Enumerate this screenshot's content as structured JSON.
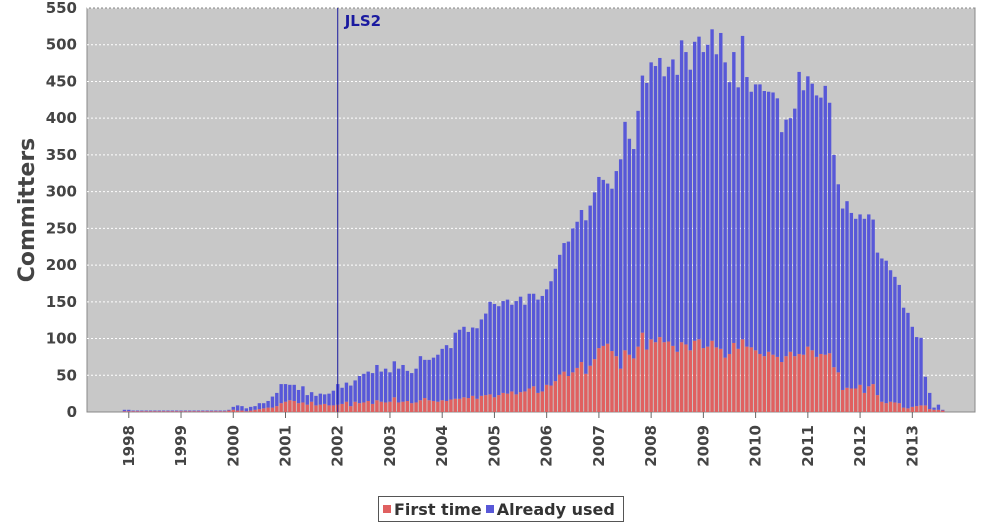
{
  "chart_data": {
    "type": "bar",
    "stacked": true,
    "ylabel": "Committers",
    "ylim": [
      0,
      550
    ],
    "yticks": [
      0,
      50,
      100,
      150,
      200,
      250,
      300,
      350,
      400,
      450,
      500,
      550
    ],
    "x_tick_labels": [
      "1998",
      "1999",
      "2000",
      "2001",
      "2002",
      "2003",
      "2004",
      "2005",
      "2006",
      "2007",
      "2008",
      "2009",
      "2010",
      "2011",
      "2012",
      "2013"
    ],
    "grid": true,
    "legend_position": "bottom-center",
    "marker": {
      "label": "JLS2",
      "x_year": 2002.0
    },
    "x_start": 1997.917,
    "x_step": 0.08333,
    "series": [
      {
        "name": "First time",
        "color": "#e06060",
        "values": [
          1,
          1,
          1,
          1,
          1,
          1,
          1,
          1,
          1,
          1,
          1,
          1,
          1,
          1,
          1,
          1,
          1,
          1,
          1,
          1,
          1,
          1,
          1,
          1,
          2,
          3,
          2,
          2,
          1,
          2,
          3,
          4,
          5,
          6,
          6,
          8,
          12,
          14,
          16,
          15,
          12,
          13,
          10,
          14,
          9,
          10,
          11,
          9,
          9,
          10,
          11,
          14,
          8,
          14,
          12,
          13,
          15,
          11,
          16,
          14,
          13,
          14,
          20,
          13,
          14,
          15,
          12,
          13,
          16,
          19,
          16,
          15,
          14,
          16,
          15,
          17,
          18,
          18,
          20,
          19,
          22,
          18,
          22,
          23,
          24,
          20,
          23,
          26,
          25,
          28,
          24,
          27,
          28,
          32,
          35,
          26,
          28,
          37,
          36,
          42,
          51,
          55,
          49,
          54,
          60,
          68,
          52,
          63,
          72,
          87,
          90,
          93,
          83,
          76,
          59,
          84,
          78,
          73,
          89,
          108,
          85,
          99,
          95,
          102,
          95,
          96,
          90,
          82,
          95,
          92,
          84,
          97,
          99,
          87,
          89,
          97,
          88,
          86,
          74,
          79,
          94,
          86,
          99,
          89,
          88,
          84,
          79,
          76,
          82,
          78,
          75,
          68,
          76,
          82,
          76,
          79,
          78,
          89,
          84,
          75,
          79,
          78,
          80,
          61,
          54,
          30,
          33,
          32,
          32,
          37,
          26,
          35,
          38,
          23,
          14,
          12,
          14,
          13,
          12,
          6,
          5,
          7,
          8,
          9,
          9,
          4,
          3,
          3,
          2
        ]
      },
      {
        "name": "Already used",
        "color": "#5858d8",
        "values": [
          2,
          2,
          1,
          1,
          1,
          1,
          1,
          1,
          1,
          1,
          1,
          1,
          1,
          1,
          1,
          1,
          1,
          1,
          1,
          1,
          1,
          1,
          1,
          1,
          1,
          4,
          7,
          6,
          4,
          5,
          5,
          8,
          7,
          9,
          15,
          18,
          26,
          24,
          21,
          22,
          18,
          22,
          13,
          13,
          13,
          15,
          13,
          16,
          20,
          28,
          22,
          26,
          28,
          29,
          37,
          39,
          40,
          42,
          48,
          41,
          46,
          40,
          49,
          46,
          50,
          41,
          41,
          46,
          60,
          52,
          55,
          59,
          64,
          70,
          76,
          70,
          90,
          94,
          96,
          90,
          93,
          96,
          104,
          111,
          126,
          127,
          121,
          125,
          128,
          118,
          127,
          130,
          118,
          129,
          126,
          127,
          130,
          130,
          142,
          153,
          163,
          175,
          183,
          196,
          199,
          207,
          209,
          218,
          227,
          233,
          226,
          218,
          221,
          252,
          285,
          311,
          294,
          285,
          321,
          350,
          363,
          377,
          376,
          380,
          362,
          374,
          390,
          377,
          411,
          398,
          382,
          407,
          412,
          403,
          411,
          424,
          399,
          430,
          402,
          370,
          396,
          356,
          413,
          367,
          348,
          362,
          367,
          361,
          354,
          357,
          352,
          313,
          322,
          318,
          337,
          384,
          360,
          368,
          363,
          356,
          349,
          366,
          341,
          289,
          256,
          247,
          254,
          239,
          231,
          232,
          237,
          234,
          224,
          194,
          195,
          194,
          179,
          171,
          161,
          136,
          130,
          109,
          94,
          92,
          39,
          22,
          3,
          7,
          1
        ]
      }
    ]
  }
}
